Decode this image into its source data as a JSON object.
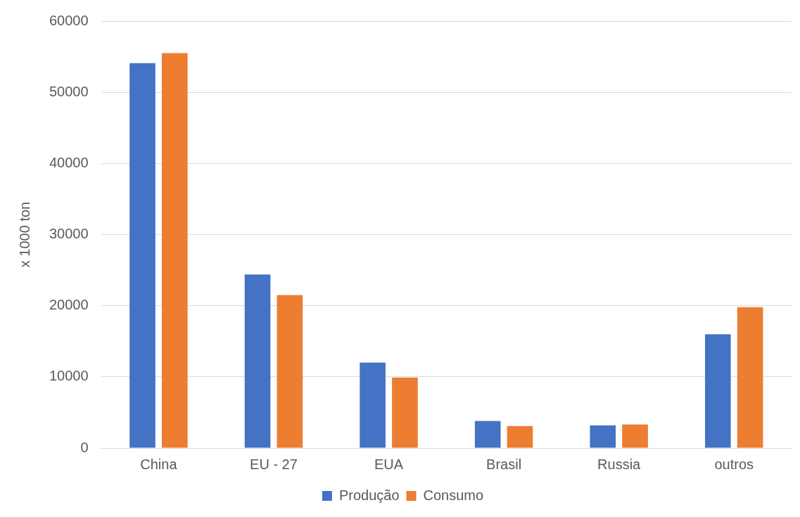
{
  "chart_data": {
    "type": "bar",
    "ylabel": "x 1000 ton",
    "categories": [
      "China",
      "EU - 27",
      "EUA",
      "Brasil",
      "Russia",
      "outros"
    ],
    "series": [
      {
        "name": "Produção",
        "color": "#4472c4",
        "values": [
          54100,
          24400,
          12000,
          3800,
          3200,
          16000
        ]
      },
      {
        "name": "Consumo",
        "color": "#ed7d31",
        "values": [
          55500,
          21500,
          9900,
          3100,
          3300,
          19800
        ]
      }
    ],
    "ylim": [
      0,
      60000
    ],
    "yticks": [
      0,
      10000,
      20000,
      30000,
      40000,
      50000,
      60000
    ],
    "grid": "y",
    "legend": "bottom"
  }
}
